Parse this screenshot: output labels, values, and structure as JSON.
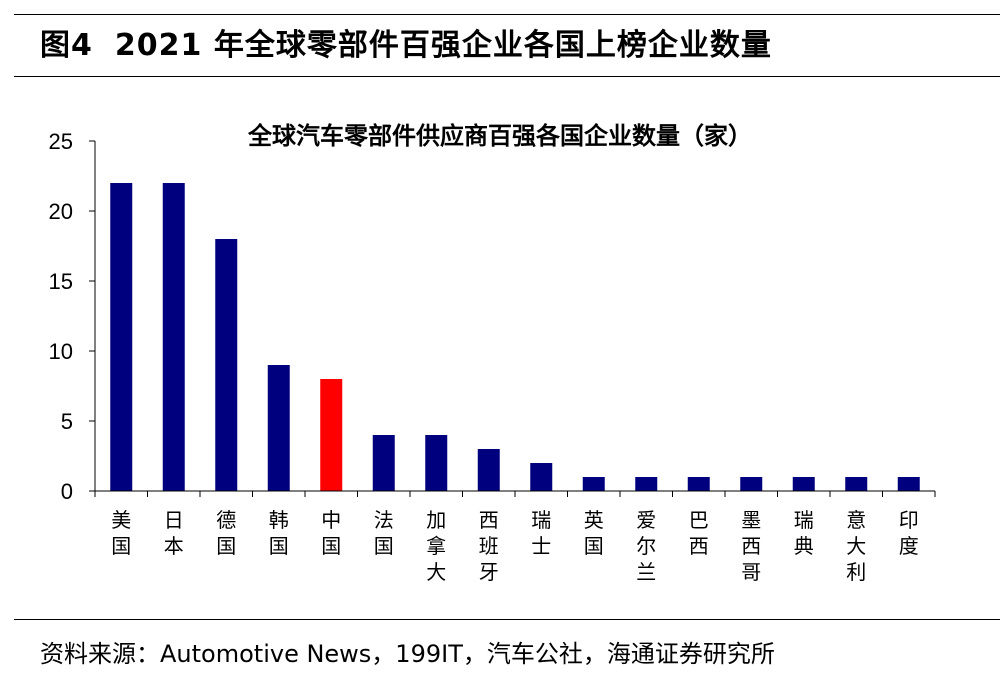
{
  "figure": {
    "label": "图4",
    "title": "2021 年全球零部件百强企业各国上榜企业数量"
  },
  "source": "资料来源：Automotive News，199IT，汽车公社，海通证券研究所",
  "colors": {
    "bar": "#00007E",
    "highlight": "#FF0000",
    "axis": "#000000"
  },
  "chart_data": {
    "type": "bar",
    "title": "全球汽车零部件供应商百强各国企业数量（家）",
    "categories": [
      "美国",
      "日本",
      "德国",
      "韩国",
      "中国",
      "法国",
      "加拿大",
      "西班牙",
      "瑞士",
      "英国",
      "爱尔兰",
      "巴西",
      "墨西哥",
      "瑞典",
      "意大利",
      "印度"
    ],
    "values": [
      22,
      22,
      18,
      9,
      8,
      4,
      4,
      3,
      2,
      1,
      1,
      1,
      1,
      1,
      1,
      1
    ],
    "highlight_category": "中国",
    "ylim": [
      0,
      25
    ],
    "yticks": [
      0,
      5,
      10,
      15,
      20,
      25
    ],
    "xlabel": "",
    "ylabel": "",
    "grid": false,
    "legend": "none"
  }
}
